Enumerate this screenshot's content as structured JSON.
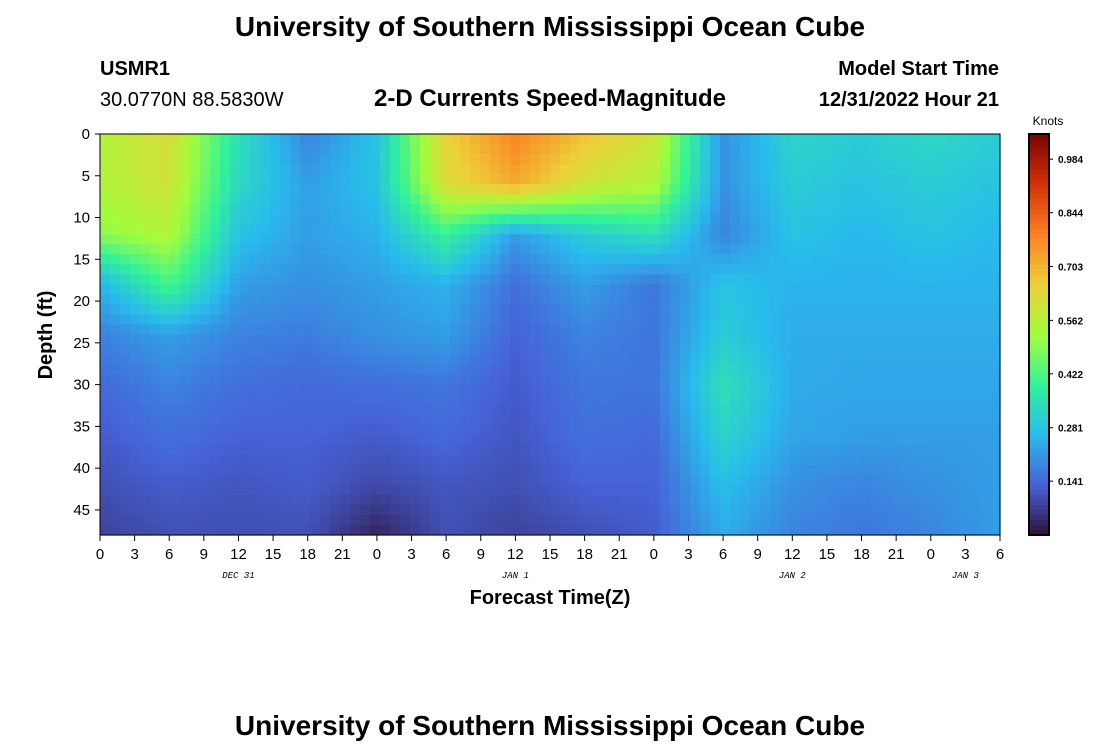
{
  "header": {
    "title": "University of Southern Mississippi Ocean Cube",
    "station": "USMR1",
    "coords": "30.0770N  88.5830W",
    "subtitle": "2-D Currents Speed-Magnitude",
    "model_start_label": "Model Start Time",
    "model_start_value": "12/31/2022 Hour 21"
  },
  "footer": {
    "title": "University of Southern Mississippi Ocean Cube"
  },
  "colorbar": {
    "unit": "Knots",
    "ticks": [
      "0.984",
      "0.844",
      "0.703",
      "0.562",
      "0.422",
      "0.281",
      "0.141"
    ],
    "tick_values": [
      0.984,
      0.844,
      0.703,
      0.562,
      0.422,
      0.281,
      0.141
    ],
    "range": [
      0.0,
      1.05
    ],
    "colors": [
      "#30123b",
      "#4663d8",
      "#29bbec",
      "#31f299",
      "#a4fc3c",
      "#edd03a",
      "#fb8022",
      "#d23105",
      "#7a0403"
    ]
  },
  "chart_data": {
    "type": "heatmap",
    "title": "2-D Currents Speed-Magnitude",
    "xlabel": "Forecast Time(Z)",
    "ylabel": "Depth (ft)",
    "zlabel": "Knots",
    "x_tick_labels": [
      "0",
      "3",
      "6",
      "9",
      "12",
      "15",
      "18",
      "21",
      "0",
      "3",
      "6",
      "9",
      "12",
      "15",
      "18",
      "21",
      "0",
      "3",
      "6",
      "9",
      "12",
      "15",
      "18",
      "21",
      "0",
      "3",
      "6"
    ],
    "date_labels": [
      {
        "text": "DEC 31",
        "tick_index": 4
      },
      {
        "text": "JAN 1",
        "tick_index": 12
      },
      {
        "text": "JAN 2",
        "tick_index": 20
      },
      {
        "text": "JAN 3",
        "tick_index": 25
      }
    ],
    "y_ticks": [
      0,
      5,
      10,
      15,
      20,
      25,
      30,
      35,
      40,
      45
    ],
    "ylim": [
      48,
      0
    ],
    "xlim_hours": [
      0,
      78
    ],
    "grid": false,
    "depths": [
      0,
      6,
      12,
      18,
      24,
      30,
      36,
      42,
      48
    ],
    "hours": [
      0,
      6,
      12,
      18,
      24,
      30,
      36,
      42,
      48,
      54,
      60,
      66,
      72,
      78
    ],
    "speed": [
      [
        0.55,
        0.62,
        0.35,
        0.18,
        0.28,
        0.65,
        0.78,
        0.68,
        0.6,
        0.2,
        0.32,
        0.3,
        0.33,
        0.3
      ],
      [
        0.55,
        0.6,
        0.33,
        0.22,
        0.28,
        0.62,
        0.72,
        0.6,
        0.55,
        0.2,
        0.3,
        0.28,
        0.3,
        0.28
      ],
      [
        0.5,
        0.55,
        0.28,
        0.22,
        0.25,
        0.4,
        0.22,
        0.3,
        0.35,
        0.18,
        0.28,
        0.26,
        0.28,
        0.26
      ],
      [
        0.25,
        0.42,
        0.22,
        0.2,
        0.22,
        0.25,
        0.15,
        0.22,
        0.16,
        0.28,
        0.25,
        0.25,
        0.25,
        0.25
      ],
      [
        0.18,
        0.22,
        0.18,
        0.17,
        0.2,
        0.22,
        0.13,
        0.18,
        0.16,
        0.3,
        0.24,
        0.24,
        0.24,
        0.24
      ],
      [
        0.14,
        0.18,
        0.15,
        0.14,
        0.15,
        0.16,
        0.12,
        0.16,
        0.16,
        0.35,
        0.24,
        0.23,
        0.23,
        0.23
      ],
      [
        0.12,
        0.15,
        0.13,
        0.13,
        0.12,
        0.14,
        0.11,
        0.15,
        0.14,
        0.32,
        0.23,
        0.22,
        0.22,
        0.22
      ],
      [
        0.1,
        0.12,
        0.11,
        0.12,
        0.09,
        0.11,
        0.1,
        0.13,
        0.13,
        0.27,
        0.2,
        0.18,
        0.2,
        0.22
      ],
      [
        0.08,
        0.1,
        0.1,
        0.1,
        0.03,
        0.1,
        0.08,
        0.1,
        0.12,
        0.24,
        0.18,
        0.16,
        0.18,
        0.22
      ]
    ]
  }
}
